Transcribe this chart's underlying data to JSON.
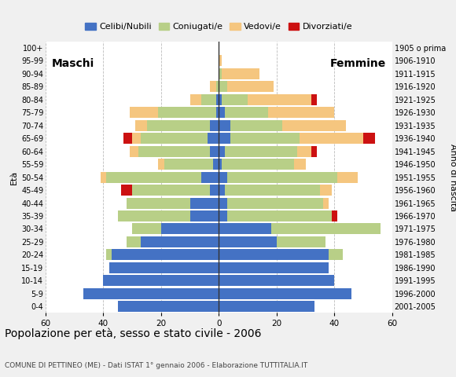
{
  "age_groups": [
    "0-4",
    "5-9",
    "10-14",
    "15-19",
    "20-24",
    "25-29",
    "30-34",
    "35-39",
    "40-44",
    "45-49",
    "50-54",
    "55-59",
    "60-64",
    "65-69",
    "70-74",
    "75-79",
    "80-84",
    "85-89",
    "90-94",
    "95-99",
    "100+"
  ],
  "birth_years": [
    "2001-2005",
    "1996-2000",
    "1991-1995",
    "1986-1990",
    "1981-1985",
    "1976-1980",
    "1971-1975",
    "1966-1970",
    "1961-1965",
    "1956-1960",
    "1951-1955",
    "1946-1950",
    "1941-1945",
    "1936-1940",
    "1931-1935",
    "1926-1930",
    "1921-1925",
    "1916-1920",
    "1911-1915",
    "1906-1910",
    "1905 o prima"
  ],
  "colors": {
    "celibe": "#4472c4",
    "coniugato": "#b8cf87",
    "vedovo": "#f5c67f",
    "divorziato": "#cc1111"
  },
  "males": {
    "celibe": [
      35,
      47,
      40,
      38,
      37,
      27,
      20,
      10,
      10,
      3,
      6,
      2,
      3,
      4,
      3,
      1,
      1,
      0,
      0,
      0,
      0
    ],
    "coniugato": [
      0,
      0,
      0,
      0,
      2,
      5,
      10,
      25,
      22,
      27,
      33,
      17,
      25,
      23,
      22,
      20,
      5,
      1,
      0,
      0,
      0
    ],
    "vedovo": [
      0,
      0,
      0,
      0,
      0,
      0,
      0,
      0,
      0,
      0,
      2,
      2,
      3,
      3,
      4,
      10,
      4,
      2,
      0,
      0,
      0
    ],
    "divorziato": [
      0,
      0,
      0,
      0,
      0,
      0,
      0,
      0,
      0,
      4,
      0,
      0,
      0,
      3,
      0,
      0,
      0,
      0,
      0,
      0,
      0
    ]
  },
  "females": {
    "celibe": [
      33,
      46,
      40,
      38,
      38,
      20,
      18,
      3,
      3,
      2,
      3,
      1,
      2,
      4,
      4,
      2,
      1,
      0,
      0,
      0,
      0
    ],
    "coniugato": [
      0,
      0,
      0,
      0,
      5,
      17,
      38,
      36,
      33,
      33,
      38,
      25,
      25,
      24,
      18,
      15,
      9,
      3,
      1,
      0,
      0
    ],
    "vedovo": [
      0,
      0,
      0,
      0,
      0,
      0,
      0,
      0,
      2,
      4,
      7,
      4,
      5,
      22,
      22,
      23,
      22,
      16,
      13,
      1,
      0
    ],
    "divorziato": [
      0,
      0,
      0,
      0,
      0,
      0,
      0,
      2,
      0,
      0,
      0,
      0,
      2,
      4,
      0,
      0,
      2,
      0,
      0,
      0,
      0
    ]
  },
  "xlim": 60,
  "title": "Popolazione per età, sesso e stato civile - 2006",
  "subtitle": "COMUNE DI PETTINEO (ME) - Dati ISTAT 1° gennaio 2006 - Elaborazione TUTTITALIA.IT",
  "label_maschi": "Maschi",
  "label_femmine": "Femmine",
  "ylabel_left": "Età",
  "ylabel_right": "Anno di nascita",
  "legend_labels": [
    "Celibi/Nubili",
    "Coniugati/e",
    "Vedovi/e",
    "Divorziati/e"
  ],
  "bg_color": "#f0f0f0",
  "plot_bg_color": "#ffffff",
  "xtick_labels": [
    "60",
    "40",
    "20",
    "0",
    "20",
    "40",
    "60"
  ],
  "xtick_vals": [
    -60,
    -40,
    -20,
    0,
    20,
    40,
    60
  ]
}
